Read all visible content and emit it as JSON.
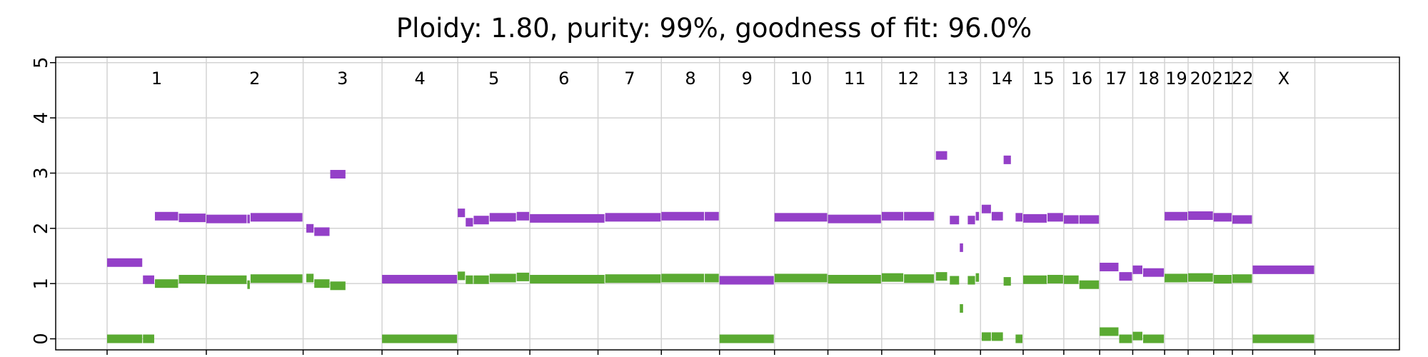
{
  "chart_data": {
    "type": "scatter",
    "title": "Ploidy: 1.80, purity: 99%, goodness of fit: 96.0%",
    "xlabel": "",
    "ylabel": "",
    "ylim": [
      -0.2,
      5.1
    ],
    "yticks": [
      "0",
      "1",
      "2",
      "3",
      "4",
      "5"
    ],
    "genome_total": 3100,
    "grid": true,
    "colors": {
      "major": "#9440c8",
      "minor": "#5aaa32"
    },
    "chromosomes": [
      {
        "name": "1",
        "start": 0,
        "end": 249
      },
      {
        "name": "2",
        "start": 249,
        "end": 492
      },
      {
        "name": "3",
        "start": 492,
        "end": 690
      },
      {
        "name": "4",
        "start": 690,
        "end": 880
      },
      {
        "name": "5",
        "start": 880,
        "end": 1061
      },
      {
        "name": "6",
        "start": 1061,
        "end": 1232
      },
      {
        "name": "7",
        "start": 1232,
        "end": 1391
      },
      {
        "name": "8",
        "start": 1391,
        "end": 1537
      },
      {
        "name": "9",
        "start": 1537,
        "end": 1675
      },
      {
        "name": "10",
        "start": 1675,
        "end": 1809
      },
      {
        "name": "11",
        "start": 1809,
        "end": 1944
      },
      {
        "name": "12",
        "start": 1944,
        "end": 2077
      },
      {
        "name": "13",
        "start": 2077,
        "end": 2192
      },
      {
        "name": "14",
        "start": 2192,
        "end": 2299
      },
      {
        "name": "15",
        "start": 2299,
        "end": 2401
      },
      {
        "name": "16",
        "start": 2401,
        "end": 2491
      },
      {
        "name": "17",
        "start": 2491,
        "end": 2574
      },
      {
        "name": "18",
        "start": 2574,
        "end": 2654
      },
      {
        "name": "19",
        "start": 2654,
        "end": 2713
      },
      {
        "name": "20",
        "start": 2713,
        "end": 2777
      },
      {
        "name": "21",
        "start": 2777,
        "end": 2824
      },
      {
        "name": "22",
        "start": 2824,
        "end": 2875
      },
      {
        "name": "X",
        "start": 2875,
        "end": 3031
      }
    ],
    "series": [
      {
        "name": "",
        "color": "#9440c8",
        "segments": [
          [
            0,
            90,
            1.38
          ],
          [
            90,
            120,
            1.07
          ],
          [
            120,
            180,
            2.22
          ],
          [
            180,
            249,
            2.19
          ],
          [
            249,
            352,
            2.17
          ],
          [
            352,
            360,
            2.17
          ],
          [
            360,
            492,
            2.2
          ],
          [
            500,
            520,
            2.0
          ],
          [
            520,
            560,
            1.94
          ],
          [
            560,
            600,
            2.98
          ],
          [
            690,
            880,
            1.08
          ],
          [
            880,
            900,
            2.28
          ],
          [
            900,
            920,
            2.11
          ],
          [
            920,
            960,
            2.15
          ],
          [
            960,
            1028,
            2.2
          ],
          [
            1028,
            1061,
            2.22
          ],
          [
            1061,
            1250,
            2.18
          ],
          [
            1250,
            1391,
            2.2
          ],
          [
            1391,
            1500,
            2.22
          ],
          [
            1500,
            1537,
            2.22
          ],
          [
            1537,
            1675,
            1.06
          ],
          [
            1675,
            1809,
            2.2
          ],
          [
            1809,
            1944,
            2.17
          ],
          [
            1944,
            2000,
            2.22
          ],
          [
            2000,
            2077,
            2.22
          ],
          [
            2080,
            2110,
            3.32
          ],
          [
            2115,
            2140,
            2.15
          ],
          [
            2140,
            2150,
            1.65
          ],
          [
            2160,
            2180,
            2.15
          ],
          [
            2180,
            2190,
            2.22
          ],
          [
            2195,
            2220,
            2.35
          ],
          [
            2220,
            2250,
            2.22
          ],
          [
            2250,
            2270,
            3.24
          ],
          [
            2280,
            2299,
            2.2
          ],
          [
            2299,
            2360,
            2.18
          ],
          [
            2360,
            2401,
            2.2
          ],
          [
            2401,
            2440,
            2.16
          ],
          [
            2440,
            2491,
            2.16
          ],
          [
            2491,
            2540,
            1.3
          ],
          [
            2540,
            2574,
            1.13
          ],
          [
            2574,
            2600,
            1.25
          ],
          [
            2600,
            2654,
            1.2
          ],
          [
            2654,
            2713,
            2.22
          ],
          [
            2713,
            2777,
            2.23
          ],
          [
            2777,
            2824,
            2.2
          ],
          [
            2824,
            2875,
            2.16
          ],
          [
            2875,
            3031,
            1.25
          ]
        ]
      },
      {
        "name": "",
        "color": "#5aaa32",
        "segments": [
          [
            0,
            90,
            0.0
          ],
          [
            90,
            120,
            0.0
          ],
          [
            120,
            180,
            1.0
          ],
          [
            180,
            249,
            1.08
          ],
          [
            249,
            352,
            1.07
          ],
          [
            352,
            360,
            0.98
          ],
          [
            360,
            492,
            1.09
          ],
          [
            500,
            520,
            1.1
          ],
          [
            520,
            560,
            1.0
          ],
          [
            560,
            600,
            0.96
          ],
          [
            690,
            880,
            0.0
          ],
          [
            880,
            900,
            1.14
          ],
          [
            900,
            920,
            1.07
          ],
          [
            920,
            960,
            1.07
          ],
          [
            960,
            1028,
            1.1
          ],
          [
            1028,
            1061,
            1.12
          ],
          [
            1061,
            1250,
            1.08
          ],
          [
            1250,
            1391,
            1.09
          ],
          [
            1391,
            1500,
            1.1
          ],
          [
            1500,
            1537,
            1.1
          ],
          [
            1537,
            1675,
            0.0
          ],
          [
            1675,
            1809,
            1.1
          ],
          [
            1809,
            1944,
            1.08
          ],
          [
            1944,
            2000,
            1.11
          ],
          [
            2000,
            2077,
            1.09
          ],
          [
            2080,
            2110,
            1.13
          ],
          [
            2115,
            2140,
            1.06
          ],
          [
            2140,
            2150,
            0.55
          ],
          [
            2160,
            2180,
            1.06
          ],
          [
            2180,
            2190,
            1.11
          ],
          [
            2195,
            2220,
            0.04
          ],
          [
            2220,
            2250,
            0.04
          ],
          [
            2250,
            2270,
            1.04
          ],
          [
            2280,
            2299,
            0.0
          ],
          [
            2299,
            2360,
            1.07
          ],
          [
            2360,
            2401,
            1.08
          ],
          [
            2401,
            2440,
            1.07
          ],
          [
            2440,
            2491,
            0.98
          ],
          [
            2491,
            2540,
            0.13
          ],
          [
            2540,
            2574,
            0.0
          ],
          [
            2574,
            2600,
            0.05
          ],
          [
            2600,
            2654,
            0.0
          ],
          [
            2654,
            2713,
            1.1
          ],
          [
            2713,
            2777,
            1.11
          ],
          [
            2777,
            2824,
            1.08
          ],
          [
            2824,
            2875,
            1.09
          ],
          [
            2875,
            3031,
            0.0
          ]
        ]
      }
    ]
  }
}
